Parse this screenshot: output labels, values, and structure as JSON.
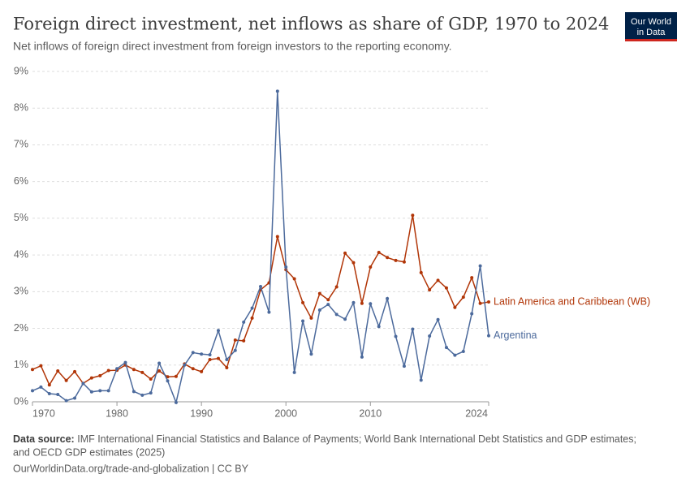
{
  "logo": [
    "Our World",
    "in Data"
  ],
  "chart_data": {
    "type": "line",
    "title": "Foreign direct investment, net inflows as share of GDP, 1970 to 2024",
    "subtitle": "Net inflows of foreign direct investment from foreign investors to the reporting economy.",
    "source_label": "Data source:",
    "source": "IMF International Financial Statistics and Balance of Payments; World Bank International Debt Statistics and GDP estimates;",
    "source_2": "and OECD GDP estimates (2025)",
    "footer": "OurWorldinData.org/trade-and-globalization | CC BY",
    "x": [
      1970,
      1971,
      1972,
      1973,
      1974,
      1975,
      1976,
      1977,
      1978,
      1979,
      1980,
      1981,
      1982,
      1983,
      1984,
      1985,
      1986,
      1987,
      1988,
      1989,
      1990,
      1991,
      1992,
      1993,
      1994,
      1995,
      1996,
      1997,
      1998,
      1999,
      2000,
      2001,
      2002,
      2003,
      2004,
      2005,
      2006,
      2007,
      2008,
      2009,
      2010,
      2011,
      2012,
      2013,
      2014,
      2015,
      2016,
      2017,
      2018,
      2019,
      2020,
      2021,
      2022,
      2023,
      2024
    ],
    "series": [
      {
        "name": "Latin America and Caribbean (WB)",
        "color": "#b13507",
        "values": [
          0.88,
          0.98,
          0.46,
          0.84,
          0.58,
          0.82,
          0.5,
          0.65,
          0.71,
          0.85,
          0.86,
          1.0,
          0.88,
          0.8,
          0.62,
          0.84,
          0.68,
          0.69,
          1.03,
          0.9,
          0.82,
          1.15,
          1.18,
          0.93,
          1.68,
          1.66,
          2.28,
          3.05,
          3.24,
          4.5,
          3.6,
          3.35,
          2.7,
          2.28,
          2.95,
          2.78,
          3.13,
          4.05,
          3.79,
          2.68,
          3.67,
          4.07,
          3.93,
          3.85,
          3.81,
          5.08,
          3.52,
          3.05,
          3.31,
          3.1,
          2.57,
          2.85,
          3.38,
          2.68,
          2.72
        ]
      },
      {
        "name": "Argentina",
        "color": "#4c6a9c",
        "values": [
          0.3,
          0.4,
          0.22,
          0.2,
          0.03,
          0.1,
          0.5,
          0.27,
          0.3,
          0.3,
          0.9,
          1.07,
          0.28,
          0.18,
          0.24,
          1.05,
          0.57,
          -0.02,
          1.0,
          1.34,
          1.3,
          1.28,
          1.94,
          1.15,
          1.4,
          2.17,
          2.55,
          3.14,
          2.44,
          8.46,
          3.67,
          0.8,
          2.2,
          1.3,
          2.5,
          2.65,
          2.38,
          2.25,
          2.7,
          1.22,
          2.67,
          2.05,
          2.81,
          1.78,
          0.97,
          1.98,
          0.59,
          1.79,
          2.24,
          1.48,
          1.27,
          1.37,
          2.4,
          3.7,
          1.8
        ]
      }
    ],
    "xlim": [
      1970,
      2024
    ],
    "xticks": [
      1970,
      1980,
      1990,
      2000,
      2010,
      2024
    ],
    "ylim": [
      0,
      9
    ],
    "yticks": [
      {
        "value": 0,
        "label": "0%"
      },
      {
        "value": 1,
        "label": "1%"
      },
      {
        "value": 2,
        "label": "2%"
      },
      {
        "value": 3,
        "label": "3%"
      },
      {
        "value": 4,
        "label": "4%"
      },
      {
        "value": 5,
        "label": "5%"
      },
      {
        "value": 6,
        "label": "6%"
      },
      {
        "value": 7,
        "label": "7%"
      },
      {
        "value": 8,
        "label": "8%"
      },
      {
        "value": 9,
        "label": "9%"
      }
    ],
    "grid": true
  }
}
